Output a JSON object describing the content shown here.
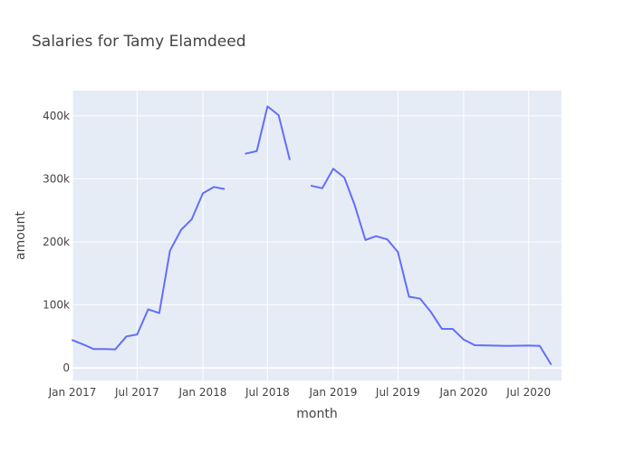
{
  "chart_data": {
    "type": "line",
    "title": "Salaries for Tamy Elamdeed",
    "xlabel": "month",
    "ylabel": "amount",
    "xlim": [
      "2017-01-01",
      "2020-10-01"
    ],
    "ylim": [
      -20000,
      440000
    ],
    "x_ticks": [
      {
        "date": "2017-01-01",
        "label": "Jan 2017"
      },
      {
        "date": "2017-07-01",
        "label": "Jul 2017"
      },
      {
        "date": "2018-01-01",
        "label": "Jan 2018"
      },
      {
        "date": "2018-07-01",
        "label": "Jul 2018"
      },
      {
        "date": "2019-01-01",
        "label": "Jan 2019"
      },
      {
        "date": "2019-07-01",
        "label": "Jul 2019"
      },
      {
        "date": "2020-01-01",
        "label": "Jan 2020"
      },
      {
        "date": "2020-07-01",
        "label": "Jul 2020"
      }
    ],
    "y_ticks": [
      {
        "value": 0,
        "label": "0"
      },
      {
        "value": 100000,
        "label": "100k"
      },
      {
        "value": 200000,
        "label": "200k"
      },
      {
        "value": 300000,
        "label": "300k"
      },
      {
        "value": 400000,
        "label": "400k"
      }
    ],
    "grid": true,
    "colors": {
      "line": "#636efa",
      "plot_bg": "#e5ecf6",
      "grid": "#ffffff"
    },
    "series": [
      {
        "points": [
          {
            "x": "2017-01-01",
            "y": 44000
          },
          {
            "x": "2017-02-01",
            "y": 37000
          },
          {
            "x": "2017-03-01",
            "y": 30000
          },
          {
            "x": "2017-04-01",
            "y": 30000
          },
          {
            "x": "2017-05-01",
            "y": 29500
          },
          {
            "x": "2017-06-01",
            "y": 50000
          },
          {
            "x": "2017-07-01",
            "y": 53000
          },
          {
            "x": "2017-08-01",
            "y": 93000
          },
          {
            "x": "2017-09-01",
            "y": 87000
          },
          {
            "x": "2017-10-01",
            "y": 186000
          },
          {
            "x": "2017-11-01",
            "y": 219000
          },
          {
            "x": "2017-12-01",
            "y": 236000
          },
          {
            "x": "2018-01-01",
            "y": 277000
          },
          {
            "x": "2018-02-01",
            "y": 287000
          },
          {
            "x": "2018-03-01",
            "y": 284000
          },
          {
            "x": "2018-04-01",
            "y": null
          },
          {
            "x": "2018-05-01",
            "y": 340000
          },
          {
            "x": "2018-06-01",
            "y": 344000
          },
          {
            "x": "2018-07-01",
            "y": 415000
          },
          {
            "x": "2018-08-01",
            "y": 401000
          },
          {
            "x": "2018-09-01",
            "y": 331000
          },
          {
            "x": "2018-10-01",
            "y": null
          },
          {
            "x": "2018-11-01",
            "y": 289000
          },
          {
            "x": "2018-12-01",
            "y": 285000
          },
          {
            "x": "2019-01-01",
            "y": 316000
          },
          {
            "x": "2019-02-01",
            "y": 302000
          },
          {
            "x": "2019-03-01",
            "y": 260000
          },
          {
            "x": "2019-04-01",
            "y": 203000
          },
          {
            "x": "2019-05-01",
            "y": 209000
          },
          {
            "x": "2019-06-01",
            "y": 204000
          },
          {
            "x": "2019-07-01",
            "y": 184000
          },
          {
            "x": "2019-08-01",
            "y": 113000
          },
          {
            "x": "2019-09-01",
            "y": 110000
          },
          {
            "x": "2019-10-01",
            "y": 89000
          },
          {
            "x": "2019-11-01",
            "y": 62000
          },
          {
            "x": "2019-12-01",
            "y": 62000
          },
          {
            "x": "2020-01-01",
            "y": 45000
          },
          {
            "x": "2020-02-01",
            "y": 36000
          },
          {
            "x": "2020-05-01",
            "y": 35000
          },
          {
            "x": "2020-07-01",
            "y": 35500
          },
          {
            "x": "2020-08-01",
            "y": 35000
          },
          {
            "x": "2020-09-01",
            "y": 6000
          }
        ]
      }
    ]
  }
}
